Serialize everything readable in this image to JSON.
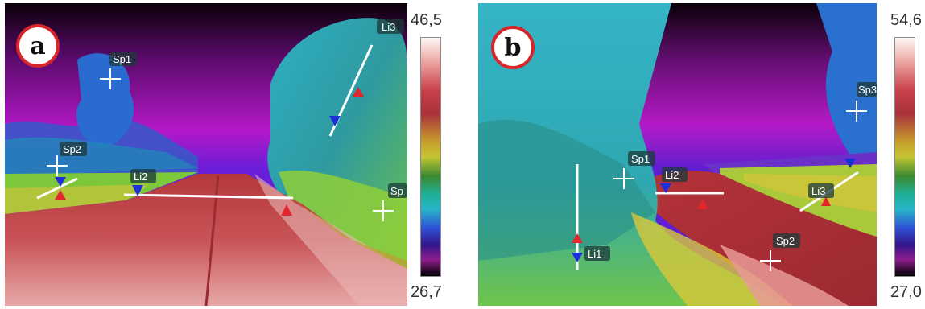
{
  "panel_a": {
    "badge": "a",
    "scale_max": "46,5",
    "scale_min": "26,7",
    "markers": {
      "sp1": "Sp1",
      "sp2": "Sp2",
      "sp3": "Sp",
      "li2": "Li2",
      "li3": "Li3"
    }
  },
  "panel_b": {
    "badge": "b",
    "scale_max": "54,6",
    "scale_min": "27,0",
    "markers": {
      "sp1": "Sp1",
      "sp2": "Sp2",
      "sp3": "Sp3",
      "li1": "Li1",
      "li2": "Li2",
      "li3": "Li3"
    }
  },
  "colors": {
    "badge_border": "#d7262b",
    "marker_max": "#e3262b",
    "marker_min": "#1d2fd8"
  }
}
